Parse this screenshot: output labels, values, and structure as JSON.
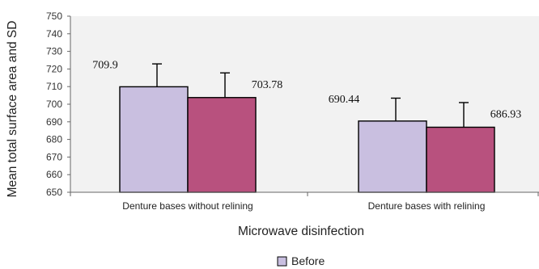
{
  "chart_data": {
    "type": "bar",
    "title": "",
    "xlabel": "Microwave disinfection",
    "ylabel": "Mean total surface area and SD",
    "categories": [
      "Denture bases without relining",
      "Denture bases with relining"
    ],
    "ylim": [
      650,
      750
    ],
    "yticks": [
      650,
      660,
      670,
      680,
      690,
      700,
      710,
      720,
      730,
      740,
      750
    ],
    "grid": false,
    "legend_position": "bottom",
    "series": [
      {
        "name": "Before",
        "color": "#c9bfe0",
        "values": [
          709.9,
          690.44
        ],
        "error": [
          13,
          13
        ],
        "labels": [
          "709.9",
          "690.44"
        ]
      },
      {
        "color": "#b8517e",
        "values": [
          703.78,
          686.93
        ],
        "error": [
          14,
          14
        ],
        "labels": [
          "703.78",
          "686.93"
        ]
      }
    ],
    "plot_background": "#f2f2f2",
    "legend": [
      {
        "label": "Before",
        "color": "#c9bfe0"
      }
    ]
  }
}
